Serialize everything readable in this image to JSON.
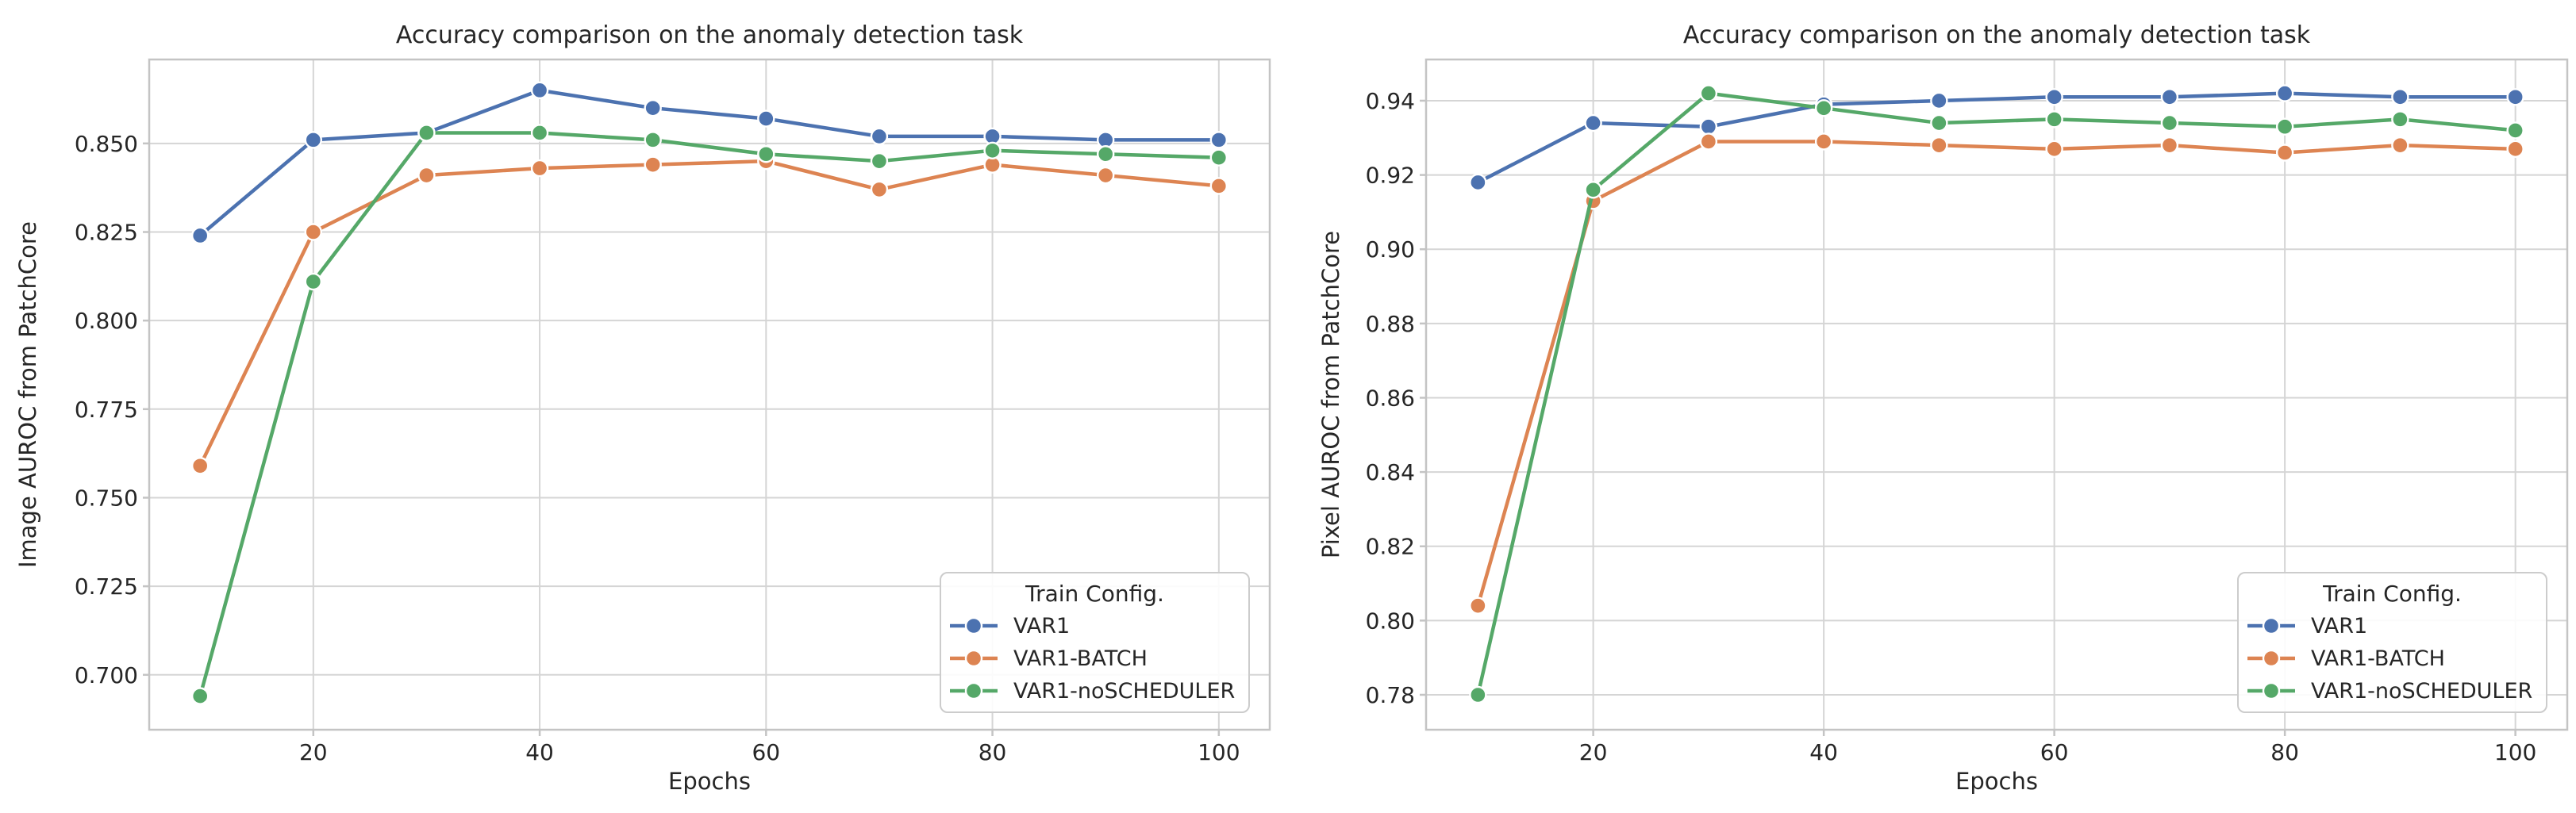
{
  "figure": {
    "background": "#ffffff",
    "text_color": "#262626",
    "grid_color": "#d5d5d5",
    "spine_color": "#c4c4c4",
    "legend_border_color": "#cccccc"
  },
  "chart_data": [
    {
      "type": "line",
      "title": "Accuracy comparison on the anomaly detection task",
      "xlabel": "Epochs",
      "ylabel": "Image AUROC from PatchCore",
      "grid": true,
      "xlim": [
        5.5,
        104.5
      ],
      "ylim": [
        0.6845,
        0.8737
      ],
      "x_ticks": {
        "values": [
          20,
          40,
          60,
          80,
          100
        ],
        "labels": [
          "20",
          "40",
          "60",
          "80",
          "100"
        ]
      },
      "y_ticks": {
        "values": [
          0.7,
          0.725,
          0.75,
          0.775,
          0.8,
          0.825,
          0.85
        ],
        "labels": [
          "0.700",
          "0.725",
          "0.750",
          "0.775",
          "0.800",
          "0.825",
          "0.850"
        ]
      },
      "x": [
        10,
        20,
        30,
        40,
        50,
        60,
        70,
        80,
        90,
        100
      ],
      "series": [
        {
          "name": "VAR1",
          "color": "#4C72B0",
          "values": [
            0.824,
            0.851,
            0.853,
            0.865,
            0.86,
            0.857,
            0.852,
            0.852,
            0.851,
            0.851
          ]
        },
        {
          "name": "VAR1-BATCH",
          "color": "#DD8452",
          "values": [
            0.759,
            0.825,
            0.841,
            0.843,
            0.844,
            0.845,
            0.837,
            0.844,
            0.841,
            0.838
          ]
        },
        {
          "name": "VAR1-noSCHEDULER",
          "color": "#55A868",
          "values": [
            0.694,
            0.811,
            0.853,
            0.853,
            0.851,
            0.847,
            0.845,
            0.848,
            0.847,
            0.846
          ]
        }
      ],
      "legend": {
        "title": "Train Config.",
        "position": "lower right",
        "entries": [
          "VAR1",
          "VAR1-BATCH",
          "VAR1-noSCHEDULER"
        ]
      }
    },
    {
      "type": "line",
      "title": "Accuracy comparison on the anomaly detection task",
      "xlabel": "Epochs",
      "ylabel": "Pixel AUROC from PatchCore",
      "grid": true,
      "xlim": [
        5.5,
        104.5
      ],
      "ylim": [
        0.7706,
        0.9511
      ],
      "x_ticks": {
        "values": [
          20,
          40,
          60,
          80,
          100
        ],
        "labels": [
          "20",
          "40",
          "60",
          "80",
          "100"
        ]
      },
      "y_ticks": {
        "values": [
          0.78,
          0.8,
          0.82,
          0.84,
          0.86,
          0.88,
          0.9,
          0.92,
          0.94
        ],
        "labels": [
          "0.78",
          "0.80",
          "0.82",
          "0.84",
          "0.86",
          "0.88",
          "0.90",
          "0.92",
          "0.94"
        ]
      },
      "x": [
        10,
        20,
        30,
        40,
        50,
        60,
        70,
        80,
        90,
        100
      ],
      "series": [
        {
          "name": "VAR1",
          "color": "#4C72B0",
          "values": [
            0.918,
            0.934,
            0.933,
            0.939,
            0.94,
            0.941,
            0.941,
            0.942,
            0.941,
            0.941
          ]
        },
        {
          "name": "VAR1-BATCH",
          "color": "#DD8452",
          "values": [
            0.804,
            0.913,
            0.929,
            0.929,
            0.928,
            0.927,
            0.928,
            0.926,
            0.928,
            0.927
          ]
        },
        {
          "name": "VAR1-noSCHEDULER",
          "color": "#55A868",
          "values": [
            0.78,
            0.916,
            0.942,
            0.938,
            0.934,
            0.935,
            0.934,
            0.933,
            0.935,
            0.932
          ]
        }
      ],
      "legend": {
        "title": "Train Config.",
        "position": "lower right",
        "entries": [
          "VAR1",
          "VAR1-BATCH",
          "VAR1-noSCHEDULER"
        ]
      }
    }
  ]
}
